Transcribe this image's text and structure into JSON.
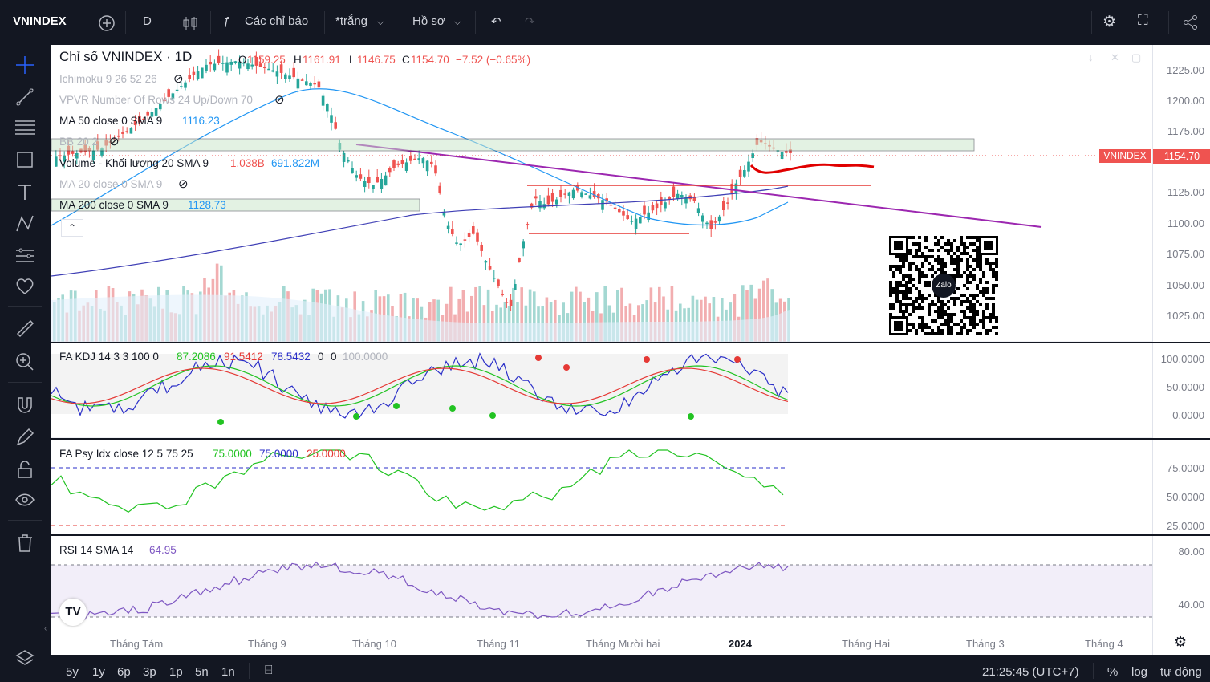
{
  "toolbar": {
    "symbol": "VNINDEX",
    "interval": "D",
    "indicators_label": "Các chỉ báo",
    "template_label": "*trắng",
    "profile_label": "Hồ sơ"
  },
  "legend": {
    "title": "Chỉ số VNINDEX · 1D",
    "open_label": "O",
    "open": "1159.25",
    "high_label": "H",
    "high": "1161.91",
    "low_label": "L",
    "low": "1146.75",
    "close_label": "C",
    "close": "1154.70",
    "change": "−7.52 (−0.65%)",
    "indicators": [
      {
        "name": "Ichimoku 9 26 52 26",
        "values": [],
        "hidden": true
      },
      {
        "name": "VPVR Number Of Rows 24 Up/Down 70",
        "values": [],
        "hidden": true
      },
      {
        "name": "MA 50 close 0 SMA 9",
        "values": [
          "1116.23"
        ],
        "hidden": false
      },
      {
        "name": "BB 20 2",
        "values": [],
        "hidden": true
      },
      {
        "name": "Volume - Khối lượng 20 SMA 9",
        "values": [
          "1.038B",
          "691.822M"
        ],
        "hidden": false
      },
      {
        "name": "MA 20 close 0 SMA 9",
        "values": [],
        "hidden": true
      },
      {
        "name": "MA 200 close 0 SMA 9",
        "values": [
          "1128.73"
        ],
        "hidden": false
      }
    ]
  },
  "price_axis": [
    "1225.00",
    "1200.00",
    "1175.00",
    "1150.00",
    "1125.00",
    "1100.00",
    "1075.00",
    "1050.00",
    "1025.00"
  ],
  "price_tag": {
    "symbol": "VNINDEX",
    "value": "1154.70",
    "color": "#ef5350"
  },
  "kdj": {
    "name": "FA KDJ 14 3 3 100 0",
    "values": [
      "87.2086",
      "91.5412",
      "78.5432",
      "0",
      "0",
      "100.0000"
    ],
    "axis": [
      "100.0000",
      "50.0000",
      "0.0000"
    ]
  },
  "psy": {
    "name": "FA Psy Idx close 12 5 75 25",
    "values": [
      "75.0000",
      "75.0000",
      "25.0000"
    ],
    "axis": [
      "75.0000",
      "50.0000",
      "25.0000"
    ]
  },
  "rsi": {
    "name": "RSI 14 SMA 14",
    "value": "64.95",
    "axis": [
      "80.00",
      "40.00"
    ]
  },
  "time_axis": [
    "Tháng Tám",
    "Tháng 9",
    "Tháng 10",
    "Tháng 11",
    "Tháng Mười hai",
    "2024",
    "Tháng Hai",
    "Tháng 3",
    "Tháng 4"
  ],
  "bottom_bar": {
    "ranges": [
      "5y",
      "1y",
      "6p",
      "3p",
      "1p",
      "5n",
      "1n"
    ],
    "clock": "21:25:45 (UTC+7)",
    "percent": "%",
    "log": "log",
    "auto": "tự động"
  },
  "qr_label": "Zalo",
  "colors": {
    "up": "#26a69a",
    "down": "#ef5350",
    "ma50": "#2196f3",
    "ma200": "#3f3fb5",
    "trend": "#9c27b0",
    "support": "#e53935"
  }
}
